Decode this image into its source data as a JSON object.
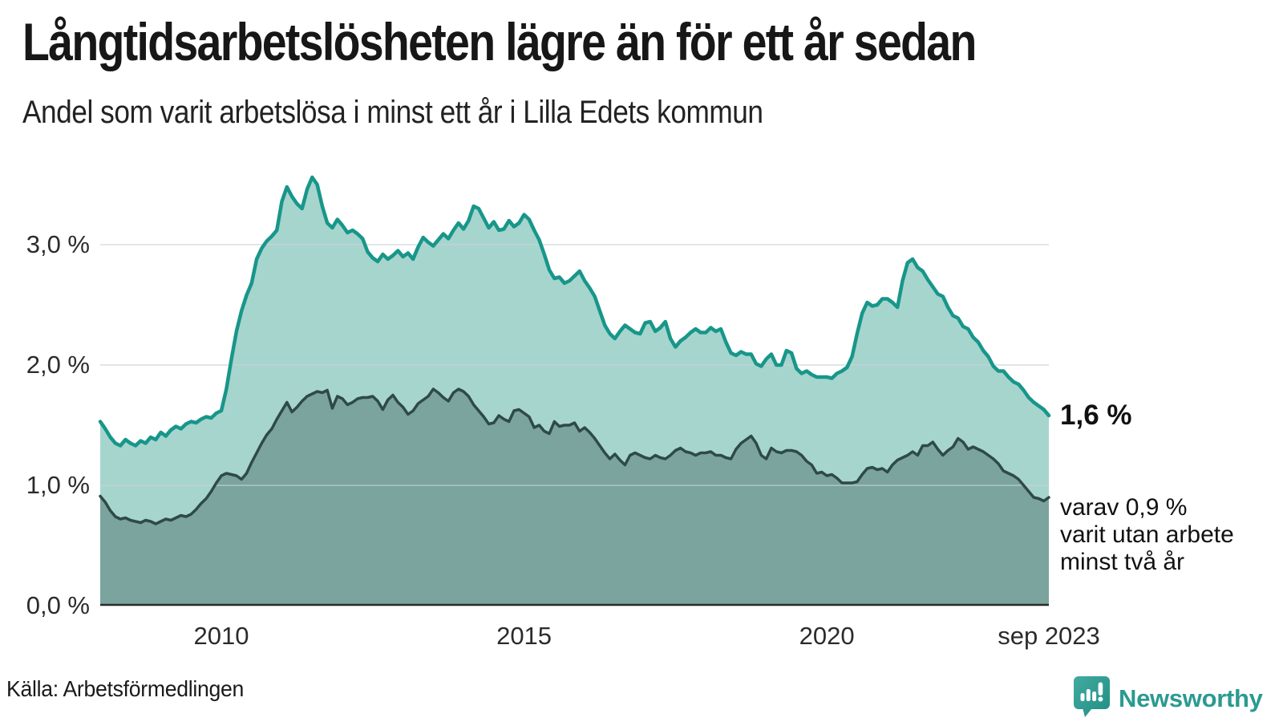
{
  "header": {
    "title": "Långtidsarbetslösheten lägre än för ett år sedan",
    "subtitle": "Andel som varit arbetslösa i minst ett år i Lilla Edets kommun"
  },
  "chart_data": {
    "type": "area",
    "title": "Långtidsarbetslösheten lägre än för ett år sedan",
    "subtitle": "Andel som varit arbetslösa i minst ett år i Lilla Edets kommun",
    "unit": "%",
    "x_start": "2008-01",
    "x_end": "2023-09",
    "x_frequency": "monthly",
    "ylim": [
      0,
      3.7
    ],
    "grid": true,
    "y_ticks": [
      {
        "label": "3,0 %",
        "value": 3.0
      },
      {
        "label": "2,0 %",
        "value": 2.0
      },
      {
        "label": "1,0 %",
        "value": 1.0
      },
      {
        "label": "0,0 %",
        "value": 0.0
      }
    ],
    "y_gridlines": [
      1.0,
      2.0,
      3.0
    ],
    "x_ticks": [
      {
        "label": "2010",
        "month_index": 24
      },
      {
        "label": "2015",
        "month_index": 84
      },
      {
        "label": "2020",
        "month_index": 144
      },
      {
        "label": "sep 2023",
        "month_index": 188
      }
    ],
    "colors": {
      "line_1yr": "#18968a",
      "fill_1yr": "#a6d5ce",
      "line_2yr": "#2f4a46",
      "fill_2yr": "#7aa49d",
      "grid": "rgba(200,210,215,0.55)",
      "baseline": "#2b2b2b"
    },
    "series": [
      {
        "name": "arbetslösa minst ett år",
        "end_label": "1,6 %",
        "values": [
          1.53,
          1.47,
          1.4,
          1.35,
          1.33,
          1.38,
          1.35,
          1.33,
          1.37,
          1.35,
          1.4,
          1.38,
          1.44,
          1.41,
          1.46,
          1.49,
          1.47,
          1.51,
          1.53,
          1.52,
          1.55,
          1.57,
          1.56,
          1.6,
          1.62,
          1.8,
          2.05,
          2.28,
          2.45,
          2.58,
          2.68,
          2.88,
          2.97,
          3.03,
          3.07,
          3.12,
          3.36,
          3.48,
          3.4,
          3.34,
          3.3,
          3.46,
          3.56,
          3.5,
          3.32,
          3.18,
          3.14,
          3.21,
          3.16,
          3.1,
          3.12,
          3.09,
          3.05,
          2.94,
          2.89,
          2.86,
          2.92,
          2.88,
          2.91,
          2.95,
          2.9,
          2.93,
          2.88,
          2.98,
          3.06,
          3.02,
          2.99,
          3.04,
          3.09,
          3.05,
          3.12,
          3.18,
          3.13,
          3.2,
          3.32,
          3.3,
          3.22,
          3.14,
          3.19,
          3.12,
          3.13,
          3.2,
          3.15,
          3.18,
          3.25,
          3.21,
          3.12,
          3.04,
          2.92,
          2.79,
          2.72,
          2.73,
          2.68,
          2.7,
          2.74,
          2.78,
          2.7,
          2.64,
          2.57,
          2.45,
          2.33,
          2.26,
          2.22,
          2.28,
          2.33,
          2.3,
          2.27,
          2.26,
          2.35,
          2.36,
          2.28,
          2.31,
          2.36,
          2.22,
          2.15,
          2.2,
          2.23,
          2.27,
          2.3,
          2.27,
          2.27,
          2.31,
          2.28,
          2.3,
          2.19,
          2.1,
          2.08,
          2.11,
          2.09,
          2.09,
          2.01,
          1.99,
          2.05,
          2.09,
          2.0,
          2.0,
          2.12,
          2.1,
          1.97,
          1.93,
          1.95,
          1.92,
          1.9,
          1.9,
          1.9,
          1.89,
          1.93,
          1.95,
          1.98,
          2.07,
          2.26,
          2.43,
          2.52,
          2.49,
          2.5,
          2.55,
          2.55,
          2.52,
          2.48,
          2.7,
          2.85,
          2.88,
          2.81,
          2.78,
          2.71,
          2.65,
          2.59,
          2.57,
          2.48,
          2.41,
          2.39,
          2.32,
          2.3,
          2.23,
          2.19,
          2.12,
          2.07,
          1.99,
          1.95,
          1.95,
          1.9,
          1.86,
          1.84,
          1.79,
          1.73,
          1.69,
          1.66,
          1.63,
          1.58
        ]
      },
      {
        "name": "varav arbetslösa minst två år",
        "end_label": "0,9 %",
        "values": [
          0.91,
          0.86,
          0.79,
          0.74,
          0.72,
          0.73,
          0.71,
          0.7,
          0.69,
          0.71,
          0.7,
          0.68,
          0.7,
          0.72,
          0.71,
          0.73,
          0.75,
          0.74,
          0.76,
          0.8,
          0.85,
          0.89,
          0.95,
          1.02,
          1.08,
          1.1,
          1.09,
          1.08,
          1.05,
          1.1,
          1.19,
          1.27,
          1.35,
          1.42,
          1.47,
          1.55,
          1.62,
          1.69,
          1.61,
          1.65,
          1.7,
          1.74,
          1.76,
          1.78,
          1.77,
          1.79,
          1.64,
          1.74,
          1.72,
          1.67,
          1.69,
          1.72,
          1.73,
          1.73,
          1.74,
          1.7,
          1.63,
          1.71,
          1.75,
          1.69,
          1.65,
          1.59,
          1.62,
          1.68,
          1.71,
          1.74,
          1.8,
          1.77,
          1.73,
          1.7,
          1.77,
          1.8,
          1.78,
          1.74,
          1.67,
          1.62,
          1.57,
          1.51,
          1.52,
          1.58,
          1.55,
          1.53,
          1.62,
          1.63,
          1.6,
          1.57,
          1.48,
          1.5,
          1.45,
          1.43,
          1.53,
          1.49,
          1.5,
          1.5,
          1.52,
          1.45,
          1.48,
          1.44,
          1.39,
          1.33,
          1.27,
          1.22,
          1.26,
          1.21,
          1.17,
          1.25,
          1.27,
          1.25,
          1.23,
          1.22,
          1.25,
          1.23,
          1.22,
          1.25,
          1.29,
          1.31,
          1.28,
          1.27,
          1.25,
          1.27,
          1.27,
          1.28,
          1.25,
          1.25,
          1.23,
          1.22,
          1.3,
          1.35,
          1.38,
          1.41,
          1.35,
          1.25,
          1.22,
          1.31,
          1.28,
          1.27,
          1.29,
          1.29,
          1.28,
          1.25,
          1.2,
          1.17,
          1.1,
          1.11,
          1.08,
          1.09,
          1.06,
          1.02,
          1.02,
          1.02,
          1.03,
          1.09,
          1.14,
          1.15,
          1.13,
          1.14,
          1.11,
          1.17,
          1.21,
          1.23,
          1.25,
          1.28,
          1.25,
          1.33,
          1.33,
          1.36,
          1.3,
          1.25,
          1.29,
          1.32,
          1.39,
          1.36,
          1.3,
          1.32,
          1.3,
          1.28,
          1.25,
          1.22,
          1.18,
          1.12,
          1.1,
          1.08,
          1.05,
          1.0,
          0.95,
          0.9,
          0.89,
          0.87,
          0.9
        ]
      }
    ],
    "annotations": {
      "end_value_label": "1,6 %",
      "end_note_lines": [
        "varav 0,9 %",
        "varit utan arbete",
        "minst två år"
      ]
    },
    "legend_position": "none"
  },
  "axes": {
    "y_labels": [
      "3,0 %",
      "2,0 %",
      "1,0 %",
      "0,0 %"
    ],
    "x_labels": [
      "2010",
      "2015",
      "2020",
      "sep 2023"
    ]
  },
  "footer": {
    "source": "Källa: Arbetsförmedlingen",
    "brand": "Newsworthy",
    "brand_color": "#2b9a90",
    "brand_icon": "speech-bubble-bar-chart-exclamation-icon"
  }
}
